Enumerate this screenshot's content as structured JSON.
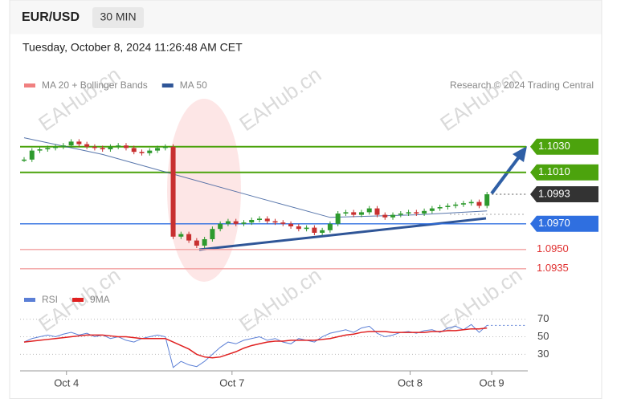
{
  "chart_data": {
    "type": "candlestick",
    "title": "EUR/USD",
    "timeframe": "30 MIN",
    "subtitle": "Tuesday, October 8, 2024 11:26:48 AM CET",
    "source": "Research © 2024 Trading Central",
    "watermark": "EAHub.cn",
    "xlim": [
      0,
      60
    ],
    "xticks": [
      {
        "value": 5.4,
        "label": "Oct 4"
      },
      {
        "value": 26.5,
        "label": "Oct 7"
      },
      {
        "value": 49.2,
        "label": "Oct 8"
      },
      {
        "value": 59.6,
        "label": "Oct 9"
      }
    ],
    "ylim": [
      1.0922,
      1.1063
    ],
    "candles": {
      "up_color": "#2e9a2e",
      "down_color": "#c83030",
      "values": [
        1.102,
        1.1027,
        1.1028,
        1.1029,
        1.103,
        1.1031,
        1.1034,
        1.1032,
        1.103,
        1.1029,
        1.1028,
        1.103,
        1.1031,
        1.1029,
        1.1026,
        1.1025,
        1.1027,
        1.1029,
        1.103,
        1.096,
        1.0962,
        1.0957,
        1.0953,
        1.0958,
        1.0966,
        1.097,
        1.0972,
        1.097,
        1.0971,
        1.0973,
        1.0974,
        1.0972,
        1.0971,
        1.097,
        1.0968,
        1.0966,
        1.0967,
        1.0963,
        1.0965,
        1.097,
        1.0978,
        1.0979,
        1.0977,
        1.0979,
        1.0982,
        1.0977,
        1.0975,
        1.0977,
        1.0978,
        1.0979,
        1.0978,
        1.098,
        1.0982,
        1.0983,
        1.0984,
        1.0985,
        1.0986,
        1.0987,
        1.0984,
        1.0993
      ]
    },
    "series": [
      {
        "name": "MA 20 + Bollinger Bands",
        "color": "#f08080"
      },
      {
        "name": "MA 50",
        "color": "#2f5597",
        "x": [
          0,
          10,
          20,
          30,
          39,
          50,
          59
        ],
        "values": [
          1.1037,
          1.1024,
          1.1007,
          1.099,
          1.0975,
          1.0977,
          1.098
        ]
      }
    ],
    "levels": [
      {
        "value": 1.103,
        "label": "1.1030",
        "color": "#4ca30d",
        "style": "box"
      },
      {
        "value": 1.101,
        "label": "1.1010",
        "color": "#4ca30d",
        "style": "box"
      },
      {
        "value": 1.0993,
        "label": "1.0993",
        "color": "#333333",
        "style": "dotted"
      },
      {
        "value": 1.097,
        "label": "1.0970",
        "color": "#2f6fe0",
        "style": "box"
      },
      {
        "value": 1.095,
        "label": "1.0950",
        "color": "#e03030",
        "style": "thin"
      },
      {
        "value": 1.0935,
        "label": "1.0935",
        "color": "#e03030",
        "style": "thin"
      }
    ],
    "rsi": {
      "ylim": [
        13,
        77
      ],
      "yticks": [
        70,
        50,
        30
      ],
      "series": [
        {
          "name": "RSI",
          "color": "#5b7fd6",
          "values": [
            44,
            48,
            50,
            52,
            50,
            53,
            55,
            52,
            54,
            50,
            52,
            48,
            50,
            46,
            44,
            48,
            50,
            52,
            50,
            15,
            22,
            18,
            16,
            22,
            30,
            38,
            44,
            42,
            46,
            48,
            50,
            46,
            48,
            44,
            42,
            48,
            46,
            44,
            50,
            54,
            56,
            58,
            55,
            60,
            62,
            54,
            50,
            52,
            55,
            56,
            54,
            57,
            58,
            55,
            60,
            62,
            58,
            64,
            55,
            63
          ]
        },
        {
          "name": "9MA",
          "color": "#e02020",
          "values": [
            44,
            45,
            46,
            47,
            48,
            49,
            50,
            51,
            52,
            52,
            52,
            51,
            50,
            50,
            49,
            48,
            48,
            48,
            48,
            44,
            40,
            36,
            30,
            27,
            26,
            27,
            30,
            33,
            37,
            40,
            42,
            44,
            45,
            45,
            46,
            46,
            46,
            46,
            47,
            48,
            50,
            52,
            53,
            55,
            56,
            56,
            56,
            55,
            55,
            55,
            55,
            55,
            56,
            56,
            57,
            57,
            58,
            59,
            59,
            60
          ]
        }
      ]
    }
  }
}
